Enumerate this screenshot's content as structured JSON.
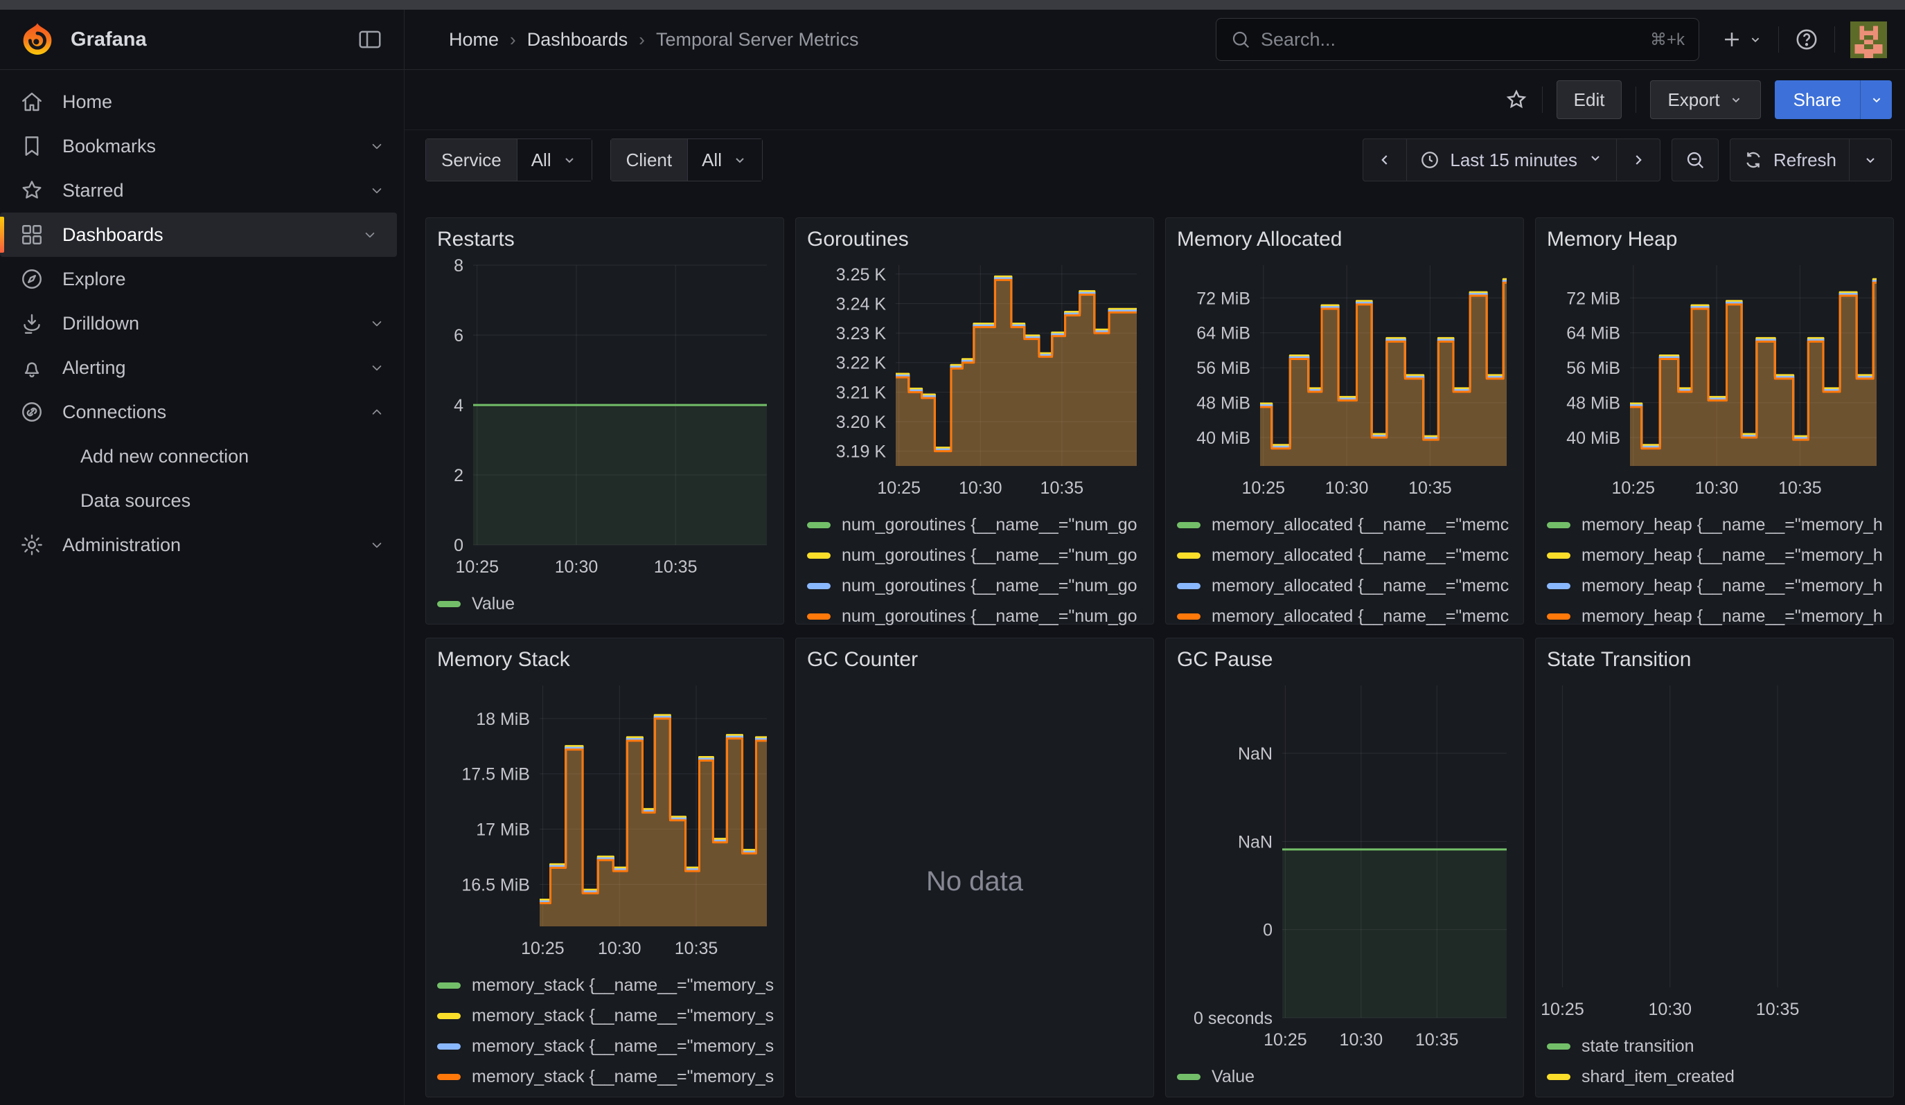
{
  "palette": {
    "green": "#73BF69",
    "yellow": "#FADE2A",
    "blue": "#8AB8FF",
    "orange": "#FF780A",
    "share_blue": "#3D71D9",
    "brand_orange": "#F55F3E",
    "panel_bg": "#181b20",
    "page_bg": "#111217"
  },
  "topbar": {
    "brand": "Grafana",
    "breadcrumb": [
      "Home",
      "Dashboards",
      "Temporal Server Metrics"
    ],
    "search": {
      "placeholder": "Search...",
      "shortcut": "⌘+k"
    }
  },
  "toolbar": {
    "edit_label": "Edit",
    "export_label": "Export",
    "share_label": "Share"
  },
  "variables": [
    {
      "label": "Service",
      "value": "All"
    },
    {
      "label": "Client",
      "value": "All"
    }
  ],
  "timepicker": {
    "range_label": "Last 15 minutes",
    "refresh_label": "Refresh"
  },
  "sidebar": {
    "items": [
      {
        "icon": "home-icon",
        "label": "Home"
      },
      {
        "icon": "bookmark-icon",
        "label": "Bookmarks",
        "chevron": "down"
      },
      {
        "icon": "star-icon",
        "label": "Starred",
        "chevron": "down"
      },
      {
        "icon": "dashboards-icon",
        "label": "Dashboards",
        "chevron": "down",
        "active": true
      },
      {
        "icon": "compass-icon",
        "label": "Explore"
      },
      {
        "icon": "drilldown-icon",
        "label": "Drilldown",
        "chevron": "down"
      },
      {
        "icon": "bell-icon",
        "label": "Alerting",
        "chevron": "down"
      },
      {
        "icon": "connections-icon",
        "label": "Connections",
        "chevron": "up"
      },
      {
        "label": "Add new connection",
        "child": true
      },
      {
        "label": "Data sources",
        "child": true
      },
      {
        "icon": "gear-icon",
        "label": "Administration",
        "chevron": "down"
      }
    ]
  },
  "panels": [
    {
      "title": "Restarts",
      "legend": [
        {
          "color": "#73BF69",
          "label": "Value"
        }
      ],
      "chart_data": {
        "type": "area",
        "xlim": [
          24.8,
          39.6
        ],
        "ylim": [
          0,
          8
        ],
        "xticks": [
          {
            "v": 25,
            "l": "10:25"
          },
          {
            "v": 30,
            "l": "10:30"
          },
          {
            "v": 35,
            "l": "10:35"
          }
        ],
        "yticks": [
          {
            "v": 0,
            "l": "0"
          },
          {
            "v": 2,
            "l": "2"
          },
          {
            "v": 4,
            "l": "4"
          },
          {
            "v": 6,
            "l": "6"
          },
          {
            "v": 8,
            "l": "8"
          }
        ],
        "grid": "xy",
        "ml": 52,
        "points": [
          [
            24.8,
            4
          ]
        ],
        "series": [
          {
            "color": "#73BF69",
            "dy": 0,
            "fill": "rgba(115,191,105,0.10)"
          }
        ]
      }
    },
    {
      "title": "Goroutines",
      "legend_max_h": 158,
      "legend": [
        {
          "color": "#73BF69",
          "label": "num_goroutines {__name__=\"num_go"
        },
        {
          "color": "#FADE2A",
          "label": "num_goroutines {__name__=\"num_go"
        },
        {
          "color": "#8AB8FF",
          "label": "num_goroutines {__name__=\"num_go"
        },
        {
          "color": "#FF780A",
          "label": "num_goroutines {__name__=\"num_go"
        }
      ],
      "chart_data": {
        "type": "step-area",
        "xlim": [
          24.8,
          39.6
        ],
        "ylim": [
          3185,
          3253
        ],
        "xticks": [
          {
            "v": 25,
            "l": "10:25"
          },
          {
            "v": 30,
            "l": "10:30"
          },
          {
            "v": 35,
            "l": "10:35"
          }
        ],
        "yticks": [
          {
            "v": 3190,
            "l": "3.19 K"
          },
          {
            "v": 3200,
            "l": "3.20 K"
          },
          {
            "v": 3210,
            "l": "3.21 K"
          },
          {
            "v": 3220,
            "l": "3.22 K"
          },
          {
            "v": 3230,
            "l": "3.23 K"
          },
          {
            "v": 3240,
            "l": "3.24 K"
          },
          {
            "v": 3250,
            "l": "3.25 K"
          }
        ],
        "grid": "xy",
        "ml": 128,
        "points": [
          [
            24.8,
            3215
          ],
          [
            25.6,
            3210
          ],
          [
            26.4,
            3208
          ],
          [
            27.2,
            3190
          ],
          [
            28.2,
            3218
          ],
          [
            28.9,
            3220
          ],
          [
            29.6,
            3232
          ],
          [
            30.9,
            3248
          ],
          [
            31.9,
            3232
          ],
          [
            32.7,
            3228
          ],
          [
            33.6,
            3222
          ],
          [
            34.4,
            3229
          ],
          [
            35.2,
            3236
          ],
          [
            36.1,
            3243
          ],
          [
            37.0,
            3230
          ],
          [
            37.9,
            3237
          ]
        ],
        "series": [
          {
            "color": "#FADE2A",
            "dy": -5,
            "fill": "rgba(250,222,42,0.16)"
          },
          {
            "color": "#8AB8FF",
            "dy": -2.5,
            "fill": "rgba(138,184,255,0.12)"
          },
          {
            "color": "#FF780A",
            "dy": 0,
            "fill": "rgba(255,120,10,0.22)"
          }
        ]
      }
    },
    {
      "title": "Memory Allocated",
      "legend_max_h": 158,
      "legend": [
        {
          "color": "#73BF69",
          "label": "memory_allocated {__name__=\"memc"
        },
        {
          "color": "#FADE2A",
          "label": "memory_allocated {__name__=\"memc"
        },
        {
          "color": "#8AB8FF",
          "label": "memory_allocated {__name__=\"memc"
        },
        {
          "color": "#FF780A",
          "label": "memory_allocated {__name__=\"memc"
        }
      ],
      "chart_data": {
        "type": "step-area",
        "xlim": [
          24.8,
          39.6
        ],
        "ylim": [
          33.5,
          79.5
        ],
        "xticks": [
          {
            "v": 25,
            "l": "10:25"
          },
          {
            "v": 30,
            "l": "10:30"
          },
          {
            "v": 35,
            "l": "10:35"
          }
        ],
        "yticks": [
          {
            "v": 40,
            "l": "40 MiB"
          },
          {
            "v": 48,
            "l": "48 MiB"
          },
          {
            "v": 56,
            "l": "56 MiB"
          },
          {
            "v": 64,
            "l": "64 MiB"
          },
          {
            "v": 72,
            "l": "72 MiB"
          }
        ],
        "grid": "xy",
        "ml": 120,
        "points": [
          [
            24.8,
            47
          ],
          [
            25.5,
            37.5
          ],
          [
            26.6,
            58
          ],
          [
            27.7,
            50.5
          ],
          [
            28.5,
            69.5
          ],
          [
            29.5,
            48.5
          ],
          [
            30.6,
            70.5
          ],
          [
            31.5,
            40
          ],
          [
            32.4,
            62
          ],
          [
            33.5,
            53.5
          ],
          [
            34.6,
            39.5
          ],
          [
            35.5,
            62
          ],
          [
            36.4,
            50.5
          ],
          [
            37.4,
            72.5
          ],
          [
            38.4,
            53.5
          ],
          [
            39.4,
            75.5
          ]
        ],
        "series": [
          {
            "color": "#FADE2A",
            "dy": -5,
            "fill": "rgba(250,222,42,0.16)"
          },
          {
            "color": "#8AB8FF",
            "dy": -2.5,
            "fill": "rgba(138,184,255,0.12)"
          },
          {
            "color": "#FF780A",
            "dy": 0,
            "fill": "rgba(255,120,10,0.22)"
          }
        ]
      }
    },
    {
      "title": "Memory Heap",
      "legend_max_h": 158,
      "legend": [
        {
          "color": "#73BF69",
          "label": "memory_heap {__name__=\"memory_h"
        },
        {
          "color": "#FADE2A",
          "label": "memory_heap {__name__=\"memory_h"
        },
        {
          "color": "#8AB8FF",
          "label": "memory_heap {__name__=\"memory_h"
        },
        {
          "color": "#FF780A",
          "label": "memory_heap {__name__=\"memory_h"
        }
      ],
      "chart_data": {
        "type": "step-area",
        "xlim": [
          24.8,
          39.6
        ],
        "ylim": [
          33.5,
          79.5
        ],
        "xticks": [
          {
            "v": 25,
            "l": "10:25"
          },
          {
            "v": 30,
            "l": "10:30"
          },
          {
            "v": 35,
            "l": "10:35"
          }
        ],
        "yticks": [
          {
            "v": 40,
            "l": "40 MiB"
          },
          {
            "v": 48,
            "l": "48 MiB"
          },
          {
            "v": 56,
            "l": "56 MiB"
          },
          {
            "v": 64,
            "l": "64 MiB"
          },
          {
            "v": 72,
            "l": "72 MiB"
          }
        ],
        "grid": "xy",
        "ml": 120,
        "points": [
          [
            24.8,
            47
          ],
          [
            25.5,
            37.5
          ],
          [
            26.6,
            58
          ],
          [
            27.7,
            50.5
          ],
          [
            28.5,
            69.5
          ],
          [
            29.5,
            48.5
          ],
          [
            30.6,
            70.5
          ],
          [
            31.5,
            40
          ],
          [
            32.4,
            62
          ],
          [
            33.5,
            53.5
          ],
          [
            34.6,
            39.5
          ],
          [
            35.5,
            62
          ],
          [
            36.4,
            50.5
          ],
          [
            37.4,
            72.5
          ],
          [
            38.4,
            53.5
          ],
          [
            39.4,
            75.5
          ]
        ],
        "series": [
          {
            "color": "#FADE2A",
            "dy": -5,
            "fill": "rgba(250,222,42,0.16)"
          },
          {
            "color": "#8AB8FF",
            "dy": -2.5,
            "fill": "rgba(138,184,255,0.12)"
          },
          {
            "color": "#FF780A",
            "dy": 0,
            "fill": "rgba(255,120,10,0.22)"
          }
        ]
      }
    },
    {
      "title": "Memory Stack",
      "legend": [
        {
          "color": "#73BF69",
          "label": "memory_stack {__name__=\"memory_s"
        },
        {
          "color": "#FADE2A",
          "label": "memory_stack {__name__=\"memory_s"
        },
        {
          "color": "#8AB8FF",
          "label": "memory_stack {__name__=\"memory_s"
        },
        {
          "color": "#FF780A",
          "label": "memory_stack {__name__=\"memory_s"
        }
      ],
      "chart_data": {
        "type": "step-area",
        "xlim": [
          24.8,
          39.6
        ],
        "ylim": [
          16.12,
          18.3
        ],
        "xticks": [
          {
            "v": 25,
            "l": "10:25"
          },
          {
            "v": 30,
            "l": "10:30"
          },
          {
            "v": 35,
            "l": "10:35"
          }
        ],
        "yticks": [
          {
            "v": 16.5,
            "l": "16.5 MiB"
          },
          {
            "v": 17,
            "l": "17 MiB"
          },
          {
            "v": 17.5,
            "l": "17.5 MiB"
          },
          {
            "v": 18,
            "l": "18 MiB"
          }
        ],
        "grid": "xy",
        "ml": 148,
        "points": [
          [
            24.8,
            16.33
          ],
          [
            25.5,
            16.65
          ],
          [
            26.5,
            17.72
          ],
          [
            27.6,
            16.42
          ],
          [
            28.6,
            16.72
          ],
          [
            29.6,
            16.62
          ],
          [
            30.5,
            17.8
          ],
          [
            31.5,
            17.15
          ],
          [
            32.3,
            18.0
          ],
          [
            33.3,
            17.08
          ],
          [
            34.3,
            16.62
          ],
          [
            35.2,
            17.62
          ],
          [
            36.1,
            16.88
          ],
          [
            37.0,
            17.82
          ],
          [
            38.0,
            16.78
          ],
          [
            38.9,
            17.8
          ]
        ],
        "series": [
          {
            "color": "#FADE2A",
            "dy": -5,
            "fill": "rgba(250,222,42,0.16)"
          },
          {
            "color": "#8AB8FF",
            "dy": -2.5,
            "fill": "rgba(138,184,255,0.12)"
          },
          {
            "color": "#FF780A",
            "dy": 0,
            "fill": "rgba(255,120,10,0.22)"
          }
        ]
      }
    },
    {
      "title": "GC Counter",
      "no_data": "No data"
    },
    {
      "title": "GC Pause",
      "legend": [
        {
          "color": "#73BF69",
          "label": "Value"
        }
      ],
      "chart_data": {
        "type": "area",
        "xlim": [
          24.8,
          39.6
        ],
        "ylim": [
          0,
          3.77
        ],
        "xticks": [
          {
            "v": 25,
            "l": "10:25"
          },
          {
            "v": 30,
            "l": "10:30"
          },
          {
            "v": 35,
            "l": "10:35"
          }
        ],
        "yticks": [
          {
            "v": 0,
            "l": "0 seconds"
          },
          {
            "v": 1,
            "l": "0"
          },
          {
            "v": 2,
            "l": "NaN"
          },
          {
            "v": 3,
            "l": "NaN"
          }
        ],
        "grid": "xy",
        "ml": 152,
        "points": [
          [
            24.8,
            1.91
          ]
        ],
        "series": [
          {
            "color": "#73BF69",
            "dy": 0,
            "fill": "rgba(115,191,105,0.09)"
          }
        ]
      }
    },
    {
      "title": "State Transition",
      "legend": [
        {
          "color": "#73BF69",
          "label": "state transition"
        },
        {
          "color": "#FADE2A",
          "label": "shard_item_created"
        }
      ],
      "chart_data": {
        "type": "empty",
        "xlim": [
          24.6,
          39.6
        ],
        "ylim": [
          0,
          1
        ],
        "xticks": [
          {
            "v": 25,
            "l": "10:25"
          },
          {
            "v": 30,
            "l": "10:30"
          },
          {
            "v": 35,
            "l": "10:35"
          }
        ],
        "yticks": [],
        "grid": "x",
        "ml": 10,
        "points": [],
        "series": []
      }
    }
  ]
}
